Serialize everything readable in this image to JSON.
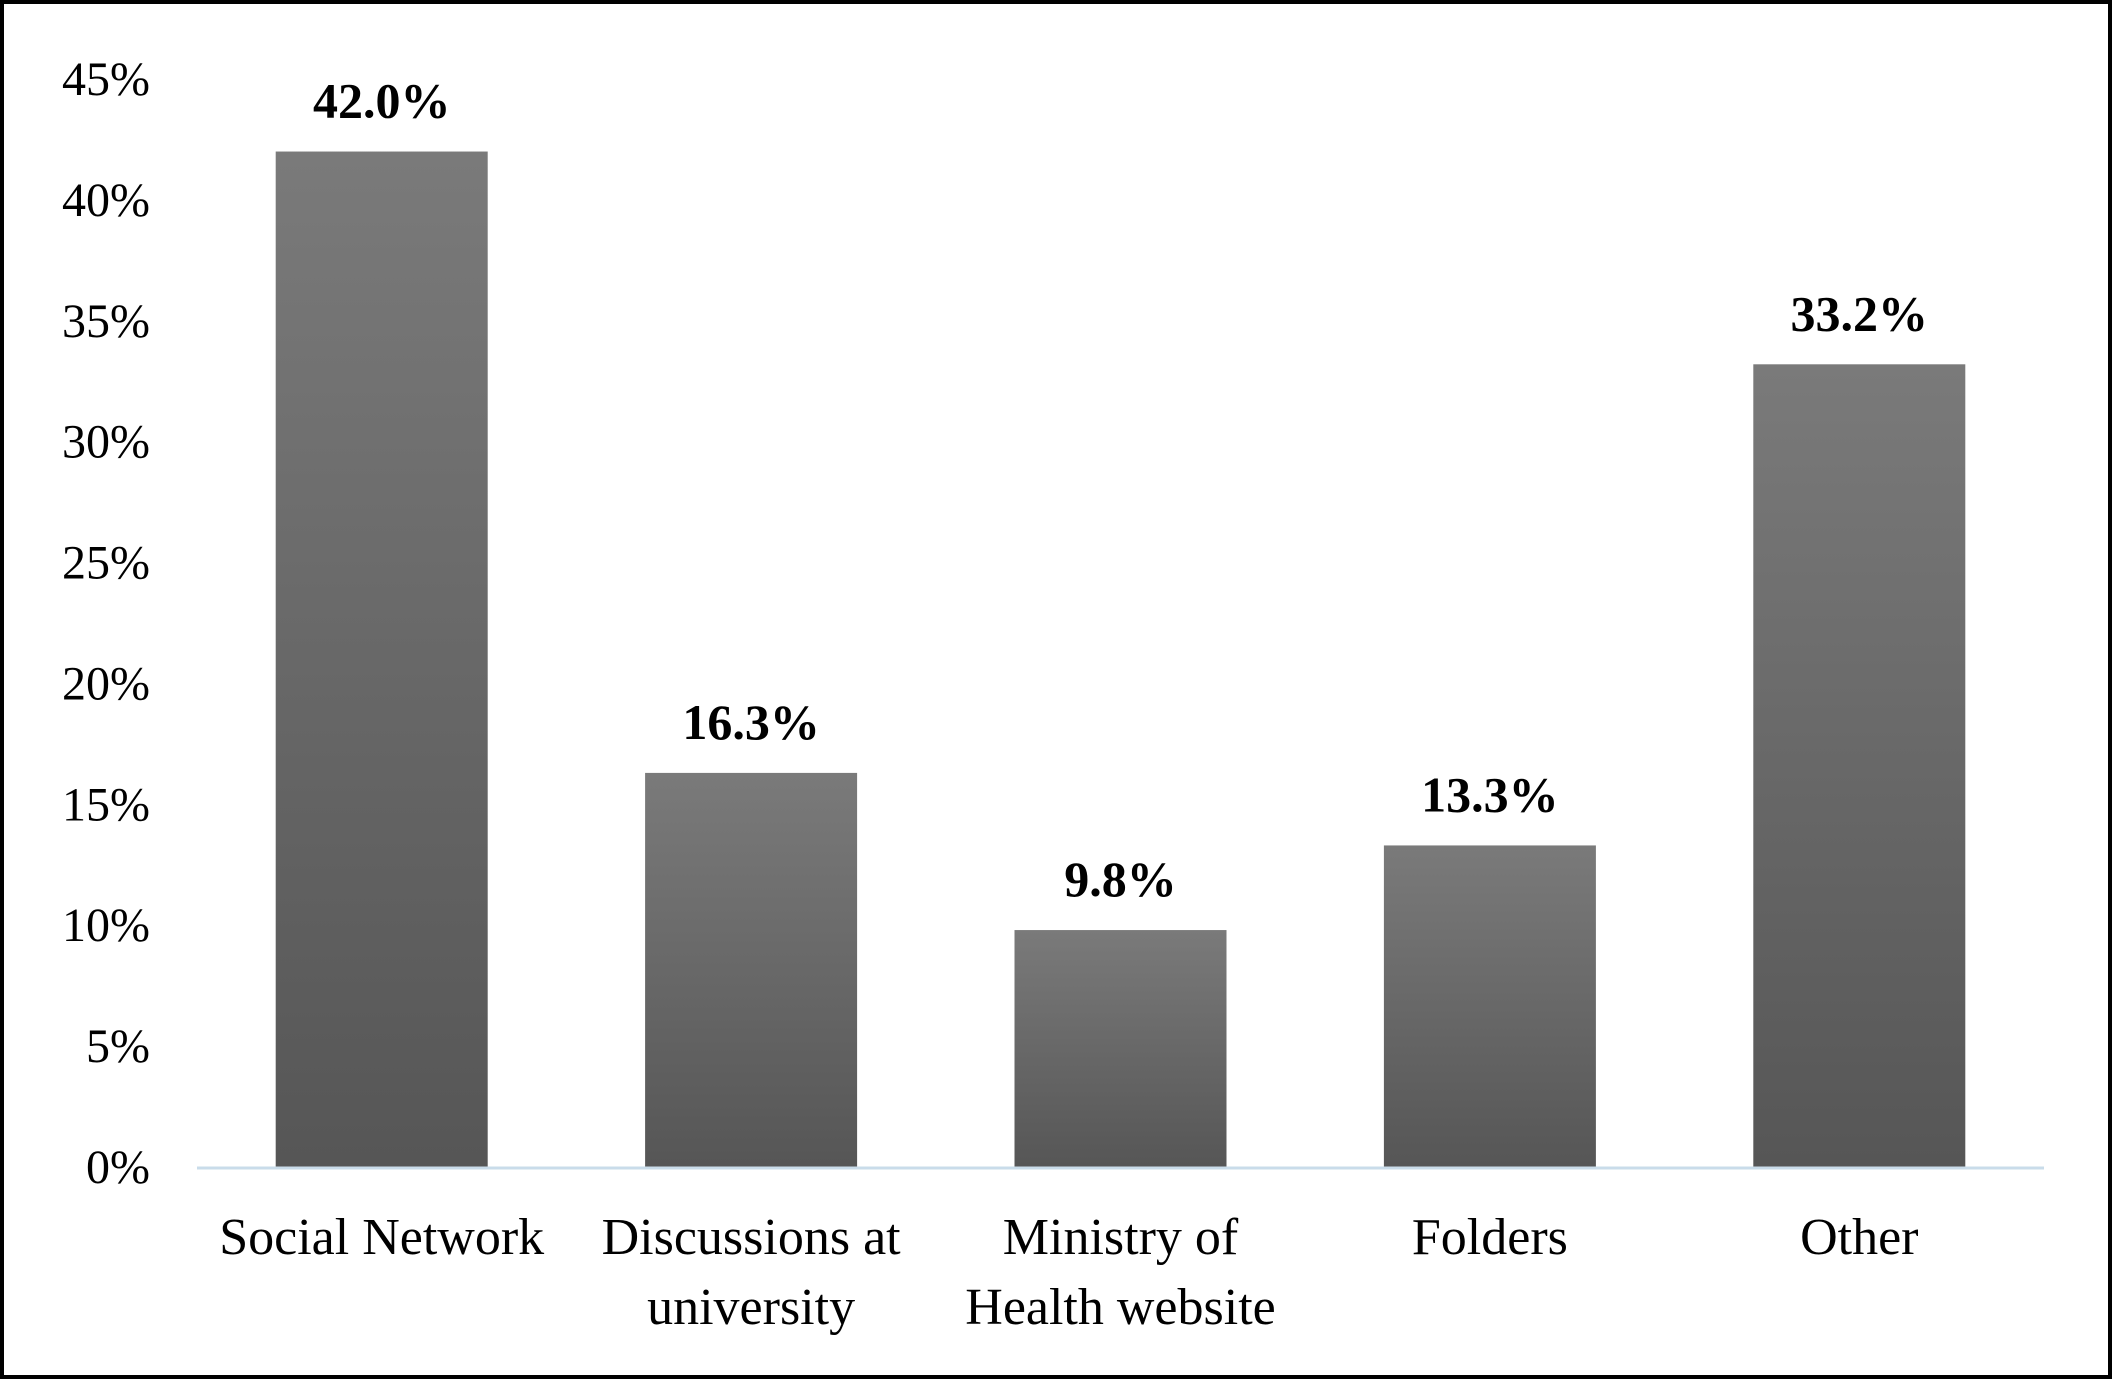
{
  "chart_data": {
    "type": "bar",
    "title": "",
    "xlabel": "",
    "ylabel": "",
    "categories": [
      [
        "Social Network"
      ],
      [
        "Discussions at",
        "university"
      ],
      [
        "Ministry of",
        "Health website"
      ],
      [
        "Folders"
      ],
      [
        "Other"
      ]
    ],
    "values": [
      42.0,
      16.3,
      9.8,
      13.3,
      33.2
    ],
    "value_labels": [
      "42.0%",
      "16.3%",
      "9.8%",
      "13.3%",
      "33.2%"
    ],
    "ylim": [
      0,
      45
    ],
    "yticks": [
      0,
      5,
      10,
      15,
      20,
      25,
      30,
      35,
      40,
      45
    ],
    "ytick_labels": [
      "0%",
      "5%",
      "10%",
      "15%",
      "20%",
      "25%",
      "30%",
      "35%",
      "40%",
      "45%"
    ],
    "grid": false,
    "legend": "none",
    "colors": {
      "bar_top": "#7a7a7a",
      "bar_bottom": "#565656",
      "baseline": "#c9dcea",
      "text": "#000000",
      "frame": "#000000"
    }
  }
}
